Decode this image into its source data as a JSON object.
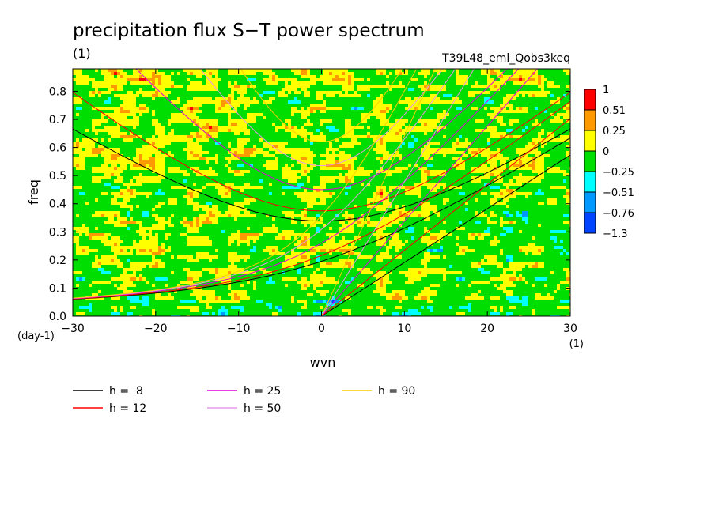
{
  "chart_data": {
    "type": "heatmap",
    "title": "precipitation flux S−T power spectrum",
    "title_unit": "(1)",
    "subtitle": "T39L48_eml_Qobs3keq",
    "xlabel": "wvn",
    "ylabel": "freq",
    "x_unit": "(1)",
    "y_unit": "(day-1)",
    "xlim": [
      -30,
      30
    ],
    "ylim": [
      0,
      0.88
    ],
    "xticks": [
      -30,
      -20,
      -10,
      0,
      10,
      20,
      30
    ],
    "yticks": [
      0.0,
      0.1,
      0.2,
      0.3,
      0.4,
      0.5,
      0.6,
      0.7,
      0.8
    ],
    "ytick_labels": [
      "0.0",
      "0.1",
      "0.2",
      "0.3",
      "0.4",
      "0.5",
      "0.6",
      "0.7",
      "0.8"
    ],
    "colorbar": {
      "levels": [
        "1",
        "0.51",
        "0.25",
        "0",
        "−0.25",
        "−0.51",
        "−0.76",
        "−1.3"
      ],
      "colors": [
        "#ff0000",
        "#ff9900",
        "#ffff00",
        "#00dd00",
        "#00ffff",
        "#0099ff",
        "#0044ff"
      ]
    },
    "dispersion_curves": [
      {
        "name": "h =  8",
        "color": "#000000",
        "depth": 8
      },
      {
        "name": "h = 12",
        "color": "#ff0000",
        "depth": 12
      },
      {
        "name": "h = 25",
        "color": "#e000e0",
        "depth": 25
      },
      {
        "name": "h = 50",
        "color": "#e898e8",
        "depth": 50
      },
      {
        "name": "h = 90",
        "color": "#ffcc00",
        "depth": 90
      }
    ]
  }
}
